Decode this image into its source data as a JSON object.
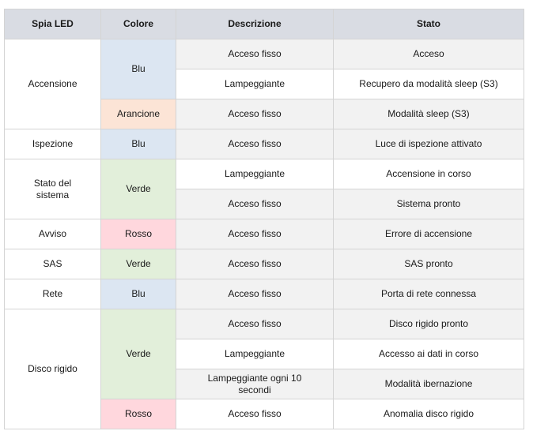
{
  "header": [
    "Spia LED",
    "Colore",
    "Descrizione",
    "Stato"
  ],
  "leds": [
    {
      "name": "Accensione",
      "colors": [
        {
          "name": "Blu",
          "states": [
            {
              "description": "Acceso fisso",
              "status": "Acceso"
            },
            {
              "description": "Lampeggiante",
              "status": "Recupero da modalità sleep (S3)"
            }
          ]
        },
        {
          "name": "Arancione",
          "states": [
            {
              "description": "Acceso fisso",
              "status": "Modalità sleep (S3)"
            }
          ]
        }
      ]
    },
    {
      "name": "Ispezione",
      "colors": [
        {
          "name": "Blu",
          "states": [
            {
              "description": "Acceso fisso",
              "status": "Luce di ispezione attivato"
            }
          ]
        }
      ]
    },
    {
      "name": "Stato del sistema",
      "colors": [
        {
          "name": "Verde",
          "states": [
            {
              "description": "Lampeggiante",
              "status": "Accensione in corso"
            },
            {
              "description": "Acceso fisso",
              "status": "Sistema pronto"
            }
          ]
        }
      ]
    },
    {
      "name": "Avviso",
      "colors": [
        {
          "name": "Rosso",
          "states": [
            {
              "description": "Acceso fisso",
              "status": "Errore di accensione"
            }
          ]
        }
      ]
    },
    {
      "name": "SAS",
      "colors": [
        {
          "name": "Verde",
          "states": [
            {
              "description": "Acceso fisso",
              "status": "SAS pronto"
            }
          ]
        }
      ]
    },
    {
      "name": "Rete",
      "colors": [
        {
          "name": "Blu",
          "states": [
            {
              "description": "Acceso fisso",
              "status": "Porta di rete connessa"
            }
          ]
        }
      ]
    },
    {
      "name": "Disco rigido",
      "colors": [
        {
          "name": "Verde",
          "states": [
            {
              "description": "Acceso fisso",
              "status": "Disco rigido pronto"
            },
            {
              "description": "Lampeggiante",
              "status": "Accesso ai dati in corso"
            },
            {
              "description": "Lampeggiante ogni 10 secondi",
              "status": "Modalità ibernazione"
            }
          ]
        },
        {
          "name": "Rosso",
          "states": [
            {
              "description": "Acceso fisso",
              "status": "Anomalia disco rigido"
            }
          ]
        }
      ]
    }
  ]
}
